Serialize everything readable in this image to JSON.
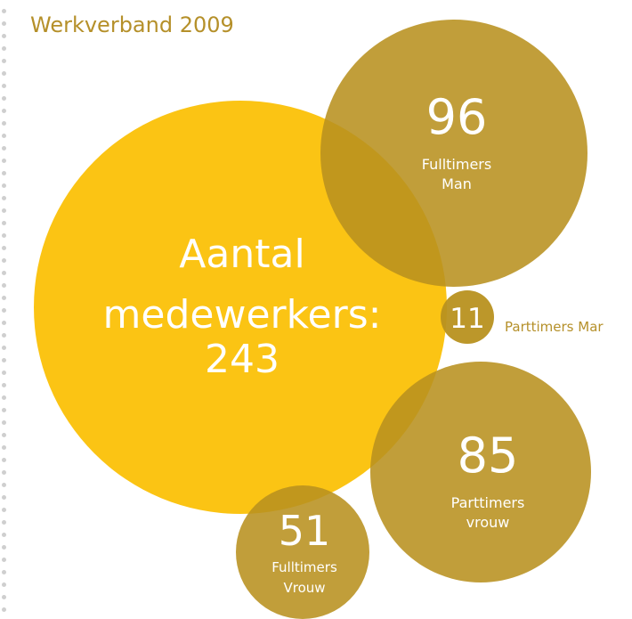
{
  "title": "Werkverband 2009",
  "colors": {
    "total": "#fbbf00",
    "segments": "#b8911f",
    "title": "#b5902a",
    "outside_label": "#b5902a",
    "label_on_fill": "#ffffff",
    "dots": "#cfcfcf"
  },
  "total": {
    "line1": "Aantal",
    "line2": "medewerkers:",
    "line3": "243",
    "value": 243
  },
  "segments": [
    {
      "id": "fulltimers-man",
      "value": 96,
      "number": "96",
      "label1": "Fulltimers",
      "label2": "Man",
      "label_outside": false
    },
    {
      "id": "parttimers-man",
      "value": 11,
      "number": "11",
      "label1": "Parttimers Mar",
      "label2": "",
      "label_outside": true
    },
    {
      "id": "parttimers-vrouw",
      "value": 85,
      "number": "85",
      "label1": "Parttimers",
      "label2": "vrouw",
      "label_outside": false
    },
    {
      "id": "fulltimers-vrouw",
      "value": 51,
      "number": "51",
      "label1": "Fulltimers",
      "label2": "Vrouw",
      "label_outside": false
    }
  ]
}
